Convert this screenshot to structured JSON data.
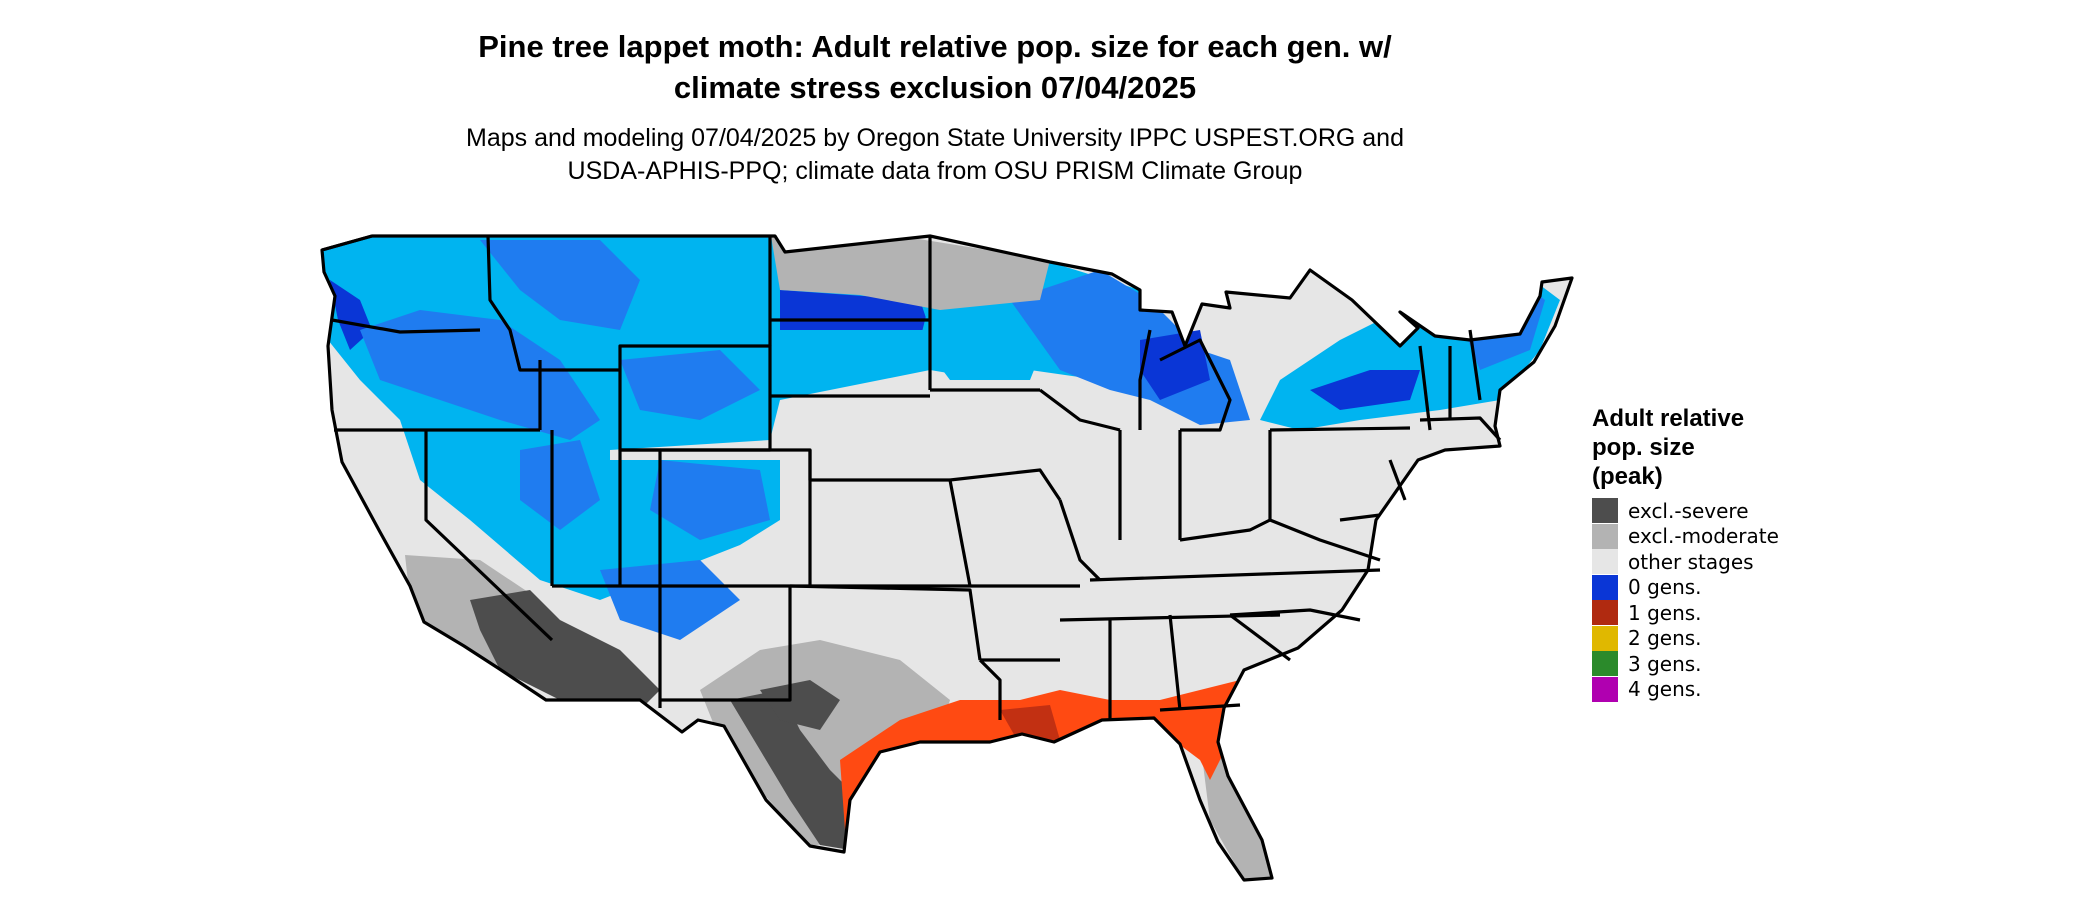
{
  "title_line1": "Pine tree lappet moth: Adult relative pop. size for each gen. w/",
  "title_line2": "climate stress exclusion 07/04/2025",
  "subtitle_line1": "Maps and modeling 07/04/2025 by Oregon State University IPPC USPEST.ORG and",
  "subtitle_line2": "USDA-APHIS-PPQ; climate data from OSU PRISM Climate Group",
  "legend": {
    "title_line1": "Adult relative",
    "title_line2": "pop. size",
    "title_line3": "(peak)",
    "items": [
      {
        "label": "excl.-severe",
        "color": "#4d4d4d"
      },
      {
        "label": "excl.-moderate",
        "color": "#b3b3b3"
      },
      {
        "label": "other stages",
        "color": "#e6e6e6"
      },
      {
        "label": "0 gens.",
        "color": "#0a36d6"
      },
      {
        "label": "1 gens.",
        "color": "#b02a10"
      },
      {
        "label": "2 gens.",
        "color": "#e0b800"
      },
      {
        "label": "3 gens.",
        "color": "#2b8a2b"
      },
      {
        "label": "4 gens.",
        "color": "#b000b0"
      }
    ]
  },
  "map_colors": {
    "base": "#e6e6e6",
    "blue_light": "#00b4f0",
    "blue_mid": "#1f7cf0",
    "blue_dark": "#0a36d6",
    "orange": "#ff4a12",
    "red_dark": "#c23012",
    "grey_dark": "#4d4d4d",
    "grey_light": "#b3b3b3",
    "border": "#000000"
  }
}
